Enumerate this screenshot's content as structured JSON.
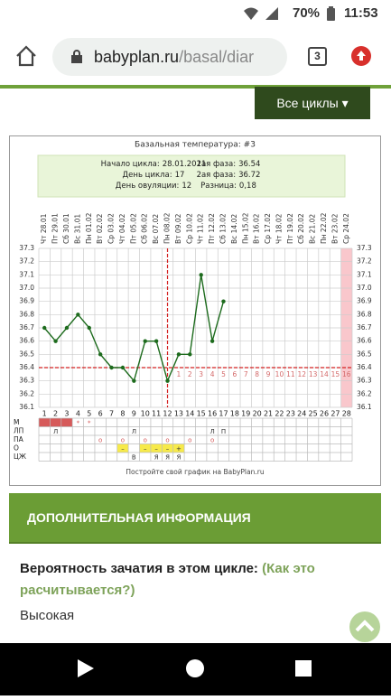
{
  "status": {
    "battery": "70%",
    "time": "11:53"
  },
  "browser": {
    "url_host": "babyplan.ru",
    "url_path": "/basal/diar",
    "tabs": 3
  },
  "button": "Все циклы",
  "chart_data": {
    "type": "line",
    "title": "Базальная температура: #3",
    "info": {
      "left": [
        {
          "label": "Начало цикла:",
          "value": "28.01.2021"
        },
        {
          "label": "День цикла:",
          "value": 17
        },
        {
          "label": "День овуляции:",
          "value": 12
        }
      ],
      "right": [
        {
          "label": "1ая фаза:",
          "value": 36.54
        },
        {
          "label": "2ая фаза:",
          "value": 36.72
        },
        {
          "label": "Разница:",
          "value": "0,18"
        }
      ]
    },
    "categories": [
      "Чт 28.01",
      "Пт 29.01",
      "Сб 30.01",
      "Вс 31.01",
      "Пн 01.02",
      "Вт 02.02",
      "Ср 03.02",
      "Чт 04.02",
      "Пт 05.02",
      "Сб 06.02",
      "Вс 07.02",
      "Пн 08.02",
      "Вт 09.02",
      "Ср 10.02",
      "Чт 11.02",
      "Пт 12.02",
      "Сб 13.02",
      "Вс 14.02",
      "Пн 15.02",
      "Вт 16.02",
      "Ср 17.02",
      "Чт 18.02",
      "Пт 19.02",
      "Сб 20.02",
      "Вс 21.02",
      "Пн 22.02",
      "Вт 23.02",
      "Ср 24.02"
    ],
    "days": [
      1,
      2,
      3,
      4,
      5,
      6,
      7,
      8,
      9,
      10,
      11,
      12,
      13,
      14,
      15,
      16,
      17,
      18,
      19,
      20,
      21,
      22,
      23,
      24,
      25,
      26,
      27,
      28
    ],
    "series": [
      {
        "color": "#1d6b1d",
        "values": [
          36.7,
          36.6,
          36.7,
          36.8,
          36.7,
          36.5,
          36.4,
          36.4,
          36.3,
          36.6,
          36.6,
          36.3,
          36.5,
          36.5,
          37.1,
          36.6,
          36.9,
          null,
          null,
          null,
          null,
          null,
          null,
          null,
          null,
          null,
          null,
          null
        ]
      }
    ],
    "ylim": [
      36.1,
      37.3
    ],
    "yticks": [
      36.1,
      36.2,
      36.3,
      36.4,
      36.5,
      36.6,
      36.7,
      36.8,
      36.9,
      {
        "value": 37,
        "label": "37.0"
      },
      37.1,
      37.2,
      37.3
    ],
    "cover_line": 36.4,
    "line_color": "#d42020",
    "phase2_days": [
      1,
      2,
      3,
      4,
      5,
      6,
      7,
      8,
      9,
      10,
      11,
      12,
      13,
      14,
      15,
      16
    ],
    "grid": true,
    "table": {
      "rows": [
        {
          "label": "М",
          "filled": [
            1,
            2,
            3
          ],
          "fill": "#d65a5a",
          "cells": [
            null,
            null,
            null,
            "*",
            "*",
            null,
            null,
            null,
            null,
            null,
            null,
            null,
            null,
            null,
            null,
            null,
            null,
            null,
            null,
            null,
            null,
            null,
            null,
            null,
            null,
            null,
            null,
            null
          ]
        },
        {
          "label": "ЛП",
          "cells": [
            null,
            "Л",
            null,
            null,
            null,
            null,
            null,
            null,
            "Л",
            null,
            null,
            null,
            null,
            null,
            null,
            "Л",
            "П",
            null,
            null,
            null,
            null,
            null,
            null,
            null,
            null,
            null,
            null,
            null
          ]
        },
        {
          "label": "ПА",
          "cells": [
            null,
            null,
            null,
            null,
            null,
            "о",
            null,
            "о",
            null,
            "о",
            null,
            "о",
            null,
            "о",
            null,
            "о",
            null,
            null,
            null,
            null,
            null,
            null,
            null,
            null,
            null,
            null,
            null,
            null
          ]
        },
        {
          "label": "О",
          "highlight": "#f7ea4a",
          "cells": [
            null,
            null,
            null,
            null,
            null,
            null,
            null,
            "–",
            null,
            "–",
            "–",
            "–",
            "+",
            null,
            null,
            null,
            null,
            null,
            null,
            null,
            null,
            null,
            null,
            null,
            null,
            null,
            null,
            null
          ]
        },
        {
          "label": "ЦЖ",
          "cells": [
            null,
            null,
            null,
            null,
            null,
            null,
            null,
            null,
            "В",
            null,
            "Я",
            "Я",
            "Я",
            null,
            null,
            null,
            null,
            null,
            null,
            null,
            null,
            null,
            null,
            null,
            null,
            null,
            null,
            null
          ]
        }
      ]
    },
    "footer": "Постройте свой график на BabyPlan.ru"
  },
  "section": {
    "title": "ДОПОЛНИТЕЛЬНАЯ ИНФОРМАЦИЯ",
    "question": "Вероятность зачатия в этом цикле:",
    "link": "(Как это расчитывается?)",
    "answer": "Высокая"
  }
}
